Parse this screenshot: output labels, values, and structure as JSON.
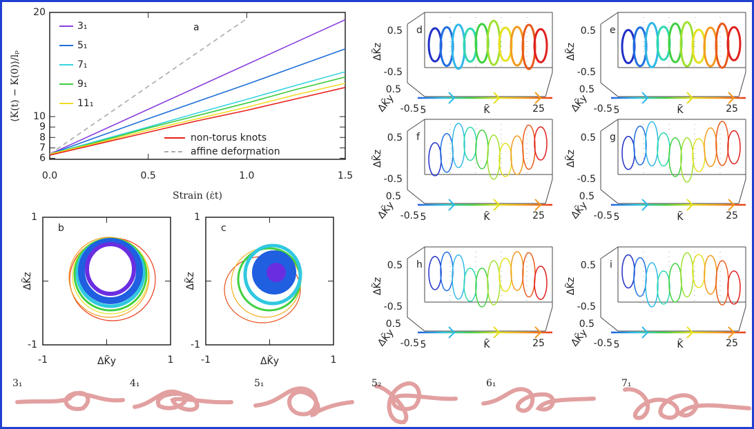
{
  "chart_data": {
    "type": "line",
    "label": "a",
    "ylabel": "⟨K(t) − K(0)⟩/lₚ",
    "xlabel": "Strain (ε̇t)",
    "x": [
      0,
      0.25,
      0.5,
      0.75,
      1.0,
      1.25,
      1.5
    ],
    "xlim": [
      0,
      1.5
    ],
    "ylim": [
      5.9,
      20
    ],
    "xticks": [
      {
        "value": 0,
        "label": "0.0"
      },
      0.5,
      {
        "value": 1,
        "label": "1.0"
      },
      1.5
    ],
    "yticks": [
      6,
      7,
      8,
      9,
      10,
      20
    ],
    "series": [
      {
        "name": "3₁",
        "color": "#8a3fdc",
        "values": [
          6.4,
          8.55,
          10.7,
          12.85,
          15.0,
          17.15,
          19.3
        ]
      },
      {
        "name": "5₁",
        "color": "#1f6fd6",
        "values": [
          6.4,
          8.1,
          9.8,
          11.45,
          13.1,
          14.8,
          16.5
        ]
      },
      {
        "name": "7₁",
        "color": "#36d3e0",
        "values": [
          6.4,
          7.7,
          9.0,
          10.35,
          11.65,
          13.0,
          14.3
        ]
      },
      {
        "name": "9₁",
        "color": "#3ccc3c",
        "values": [
          6.4,
          7.6,
          8.9,
          10.1,
          11.3,
          12.6,
          13.8
        ]
      },
      {
        "name": "11₁",
        "color": "#f0dc28",
        "values": [
          6.4,
          7.5,
          8.7,
          9.8,
          10.9,
          12.1,
          13.2
        ]
      },
      {
        "name": "non-torus knots",
        "color": "#e8201a",
        "values": [
          6.3,
          7.4,
          8.5,
          9.6,
          10.6,
          11.7,
          12.8
        ]
      },
      {
        "name": "affine deformation",
        "color": "#aaaaaa",
        "dashed": true,
        "values": [
          6.4,
          9.65,
          12.9,
          16.15,
          19.4,
          null,
          null
        ]
      }
    ]
  },
  "panels": [
    {
      "label": "b",
      "xlabel": "ΔK̃y",
      "ylabel": "ΔK̃z",
      "xticks": [
        -1,
        1
      ],
      "yticks": [
        -1,
        1
      ]
    },
    {
      "label": "c",
      "xlabel": "ΔK̃y",
      "ylabel": "ΔK̃z",
      "xticks": [
        -1,
        1
      ],
      "yticks": [
        -1,
        1
      ]
    }
  ],
  "panels_3d": {
    "labels": [
      "d",
      "e",
      "f",
      "g",
      "h",
      "i"
    ],
    "z_label": "ΔK̃z",
    "y_label": "ΔK̃y",
    "x_label": "K̃",
    "z_ticks": [
      0.5,
      -0.5
    ],
    "y_ticks": [
      0.5,
      -0.5
    ],
    "x_ticks": [
      5,
      25
    ]
  },
  "knots": [
    "3₁",
    "4₁",
    "5₁",
    "5₂",
    "6₁",
    "7₁"
  ]
}
